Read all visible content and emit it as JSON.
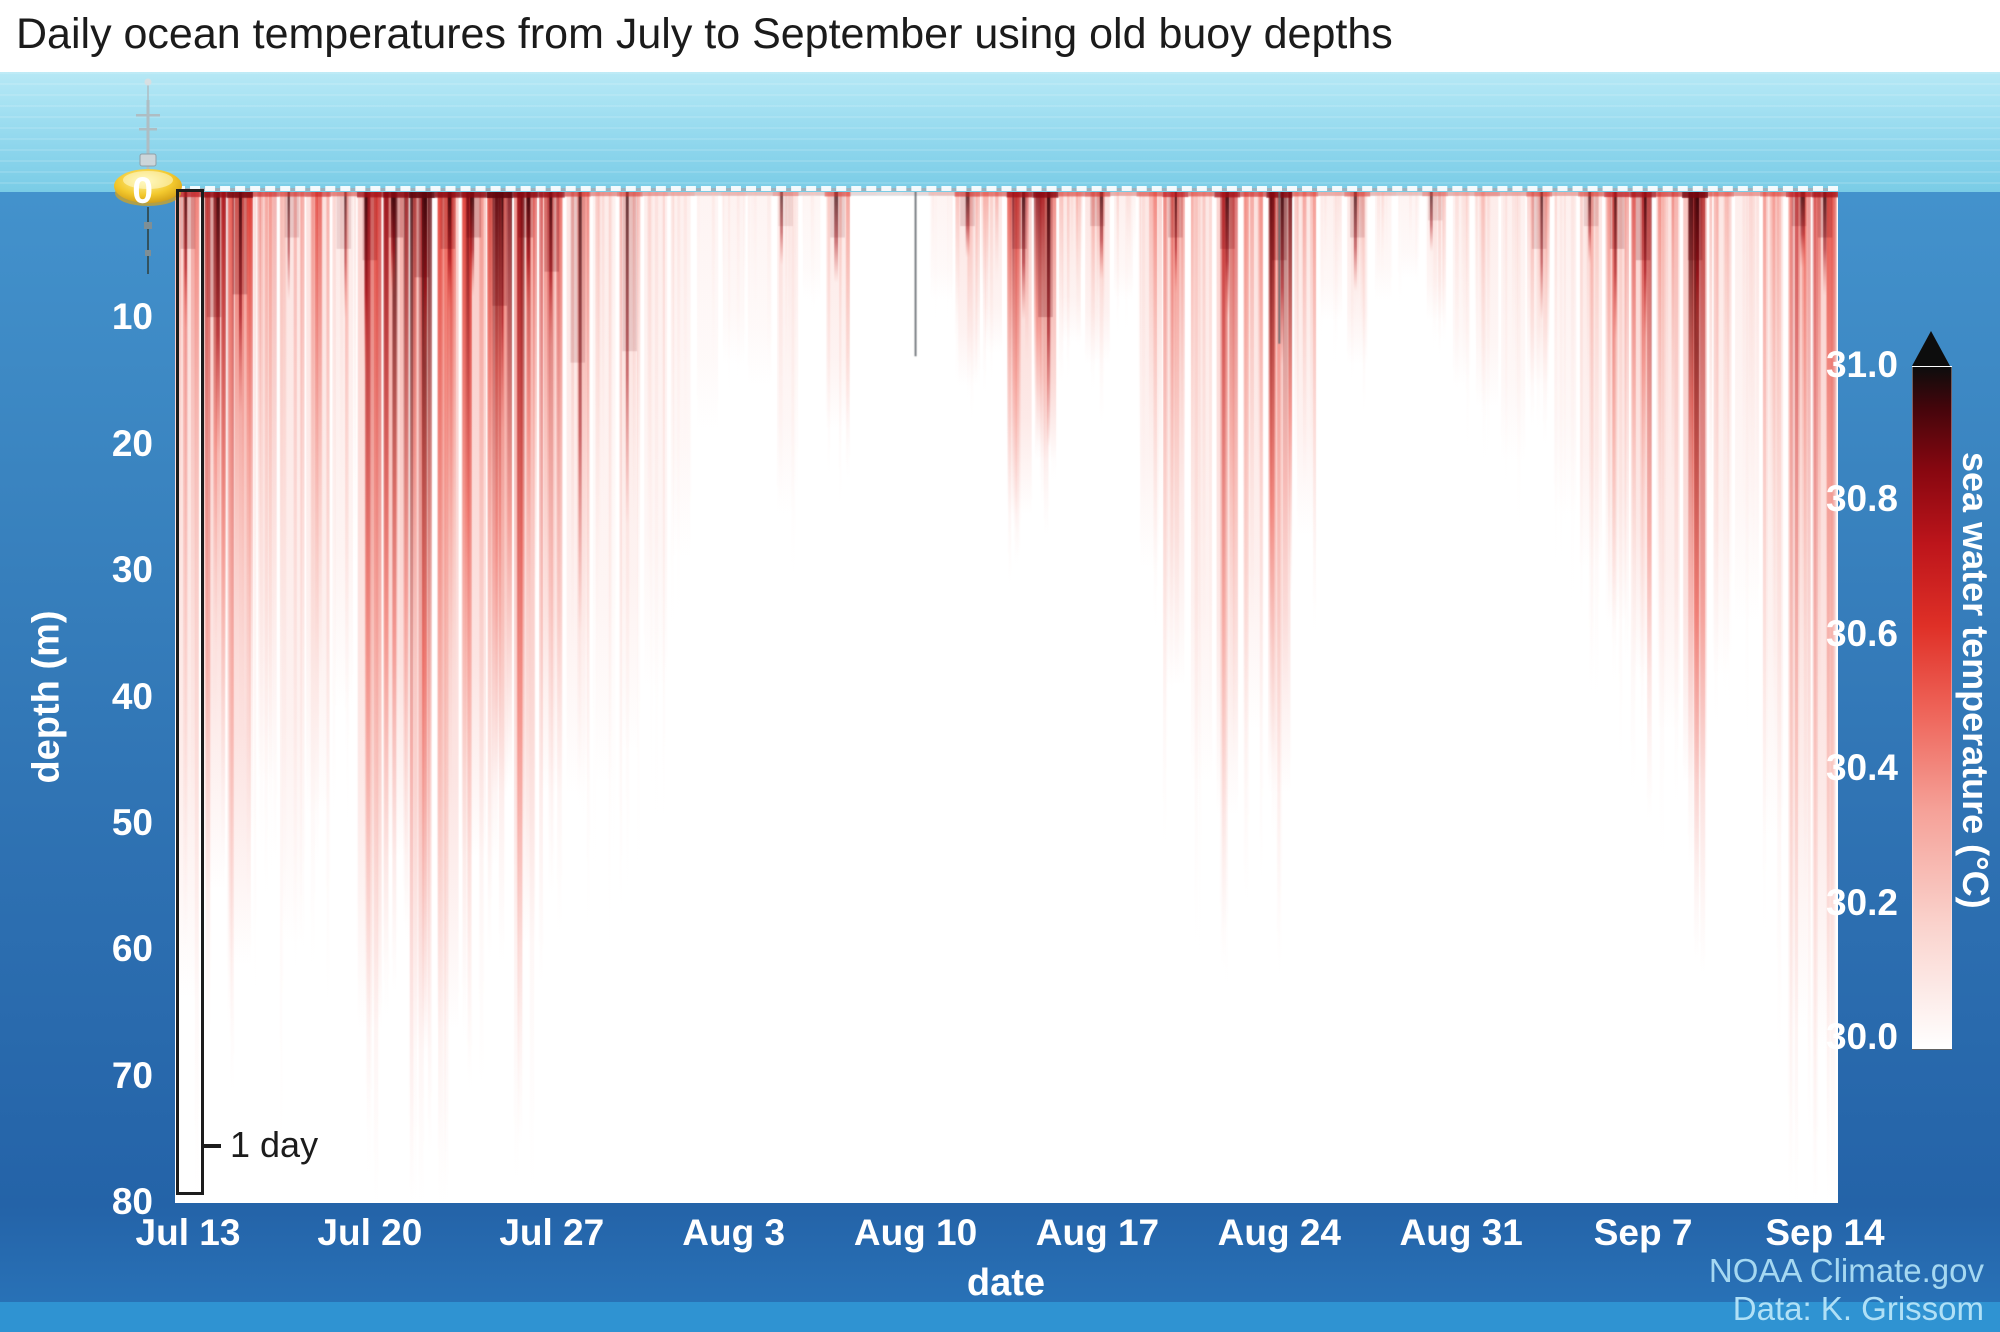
{
  "page": {
    "title": "Daily ocean temperatures from July to September using old buoy depths",
    "credits": [
      "NOAA Climate.gov",
      "Data: K. Grissom"
    ]
  },
  "chart_data": {
    "type": "heatmap",
    "title": "Daily ocean temperatures from July to September using old buoy depths",
    "xlabel": "date",
    "ylabel": "depth (m)",
    "x_start_label": "Jul 13",
    "x_end_label": "Sep 14",
    "x_tick_labels": [
      "Jul 13",
      "Jul 20",
      "Jul 27",
      "Aug 3",
      "Aug 10",
      "Aug 17",
      "Aug 24",
      "Aug 31",
      "Sep 7",
      "Sep 14"
    ],
    "x_tick_days": [
      0,
      7,
      14,
      21,
      28,
      35,
      42,
      49,
      56,
      63
    ],
    "y_ticks_m": [
      0,
      10,
      20,
      30,
      40,
      50,
      60,
      70,
      80
    ],
    "depth_range_m": [
      0,
      80
    ],
    "annotations": {
      "one_day": "1 day"
    },
    "colorbar": {
      "label": "sea water temperature (°C)",
      "range_c": [
        30.0,
        31.0
      ],
      "ticks_c": [
        30.0,
        30.2,
        30.4,
        30.6,
        30.8,
        31.0
      ],
      "over_range_arrow": true,
      "gradient_stops": [
        {
          "t": 0.0,
          "color": "#ffffff"
        },
        {
          "t": 0.18,
          "color": "#fad3cd"
        },
        {
          "t": 0.35,
          "color": "#f5a198"
        },
        {
          "t": 0.5,
          "color": "#ee6257"
        },
        {
          "t": 0.62,
          "color": "#df3027"
        },
        {
          "t": 0.74,
          "color": "#bd151b"
        },
        {
          "t": 0.85,
          "color": "#870710"
        },
        {
          "t": 0.94,
          "color": "#44050b"
        },
        {
          "t": 1.0,
          "color": "#0d0d0d"
        }
      ]
    },
    "days_format": [
      "max_warm_depth_m",
      "intensity_0to1",
      "dark_core_depth_m"
    ],
    "days": [
      [
        75,
        0.7,
        10
      ],
      [
        65,
        0.85,
        22
      ],
      [
        72,
        0.95,
        18
      ],
      [
        55,
        0.6,
        0
      ],
      [
        70,
        0.55,
        8
      ],
      [
        58,
        0.6,
        0
      ],
      [
        48,
        0.45,
        10
      ],
      [
        78,
        0.8,
        12
      ],
      [
        62,
        0.9,
        8
      ],
      [
        80,
        1.0,
        15
      ],
      [
        78,
        0.9,
        10
      ],
      [
        62,
        0.9,
        8
      ],
      [
        56,
        1.0,
        20
      ],
      [
        70,
        0.9,
        8
      ],
      [
        56,
        0.85,
        14
      ],
      [
        56,
        0.55,
        30
      ],
      [
        55,
        0.4,
        0
      ],
      [
        52,
        0.5,
        28
      ],
      [
        46,
        0.35,
        0
      ],
      [
        34,
        0.3,
        0
      ],
      [
        22,
        0.2,
        0
      ],
      [
        16,
        0.25,
        0
      ],
      [
        18,
        0.2,
        0
      ],
      [
        30,
        0.35,
        6
      ],
      [
        10,
        0.15,
        0
      ],
      [
        22,
        0.5,
        8
      ],
      [
        4,
        0.05,
        0
      ],
      [
        2,
        0.02,
        0
      ],
      [
        3,
        0.05,
        0
      ],
      [
        10,
        0.2,
        0
      ],
      [
        18,
        0.55,
        6
      ],
      [
        15,
        0.5,
        0
      ],
      [
        30,
        0.8,
        10
      ],
      [
        25,
        0.9,
        22
      ],
      [
        14,
        0.5,
        0
      ],
      [
        16,
        0.55,
        6
      ],
      [
        10,
        0.3,
        0
      ],
      [
        35,
        0.5,
        0
      ],
      [
        46,
        0.7,
        8
      ],
      [
        55,
        0.5,
        0
      ],
      [
        58,
        0.8,
        10
      ],
      [
        50,
        0.6,
        0
      ],
      [
        56,
        0.9,
        12
      ],
      [
        32,
        0.5,
        0
      ],
      [
        12,
        0.3,
        0
      ],
      [
        16,
        0.5,
        8
      ],
      [
        10,
        0.25,
        0
      ],
      [
        8,
        0.2,
        0
      ],
      [
        12,
        0.4,
        5
      ],
      [
        18,
        0.3,
        0
      ],
      [
        20,
        0.4,
        0
      ],
      [
        25,
        0.3,
        0
      ],
      [
        18,
        0.5,
        10
      ],
      [
        30,
        0.3,
        0
      ],
      [
        35,
        0.5,
        6
      ],
      [
        40,
        0.7,
        10
      ],
      [
        45,
        0.8,
        12
      ],
      [
        50,
        0.6,
        0
      ],
      [
        55,
        0.95,
        12
      ],
      [
        45,
        0.5,
        0
      ],
      [
        40,
        0.35,
        0
      ],
      [
        60,
        0.5,
        0
      ],
      [
        78,
        0.7,
        6
      ],
      [
        80,
        0.8,
        8
      ]
    ],
    "gap_markers": [
      {
        "day": 28,
        "depth_m": 13
      },
      {
        "day": 42,
        "depth_m": 12
      }
    ]
  },
  "colors": {
    "header_bg": "#ffffff",
    "title_text": "#1b1b1b",
    "axis_text": "#ffffff",
    "surface_band_top": "#a9e3f3",
    "surface_band_bottom": "#7acce6",
    "ocean_top": "#4493cd",
    "ocean_bottom": "#2463a8",
    "bottom_band": "#2f93d2",
    "buoy_yellow": "#f3c92e",
    "annotation_text": "#1c1c1c",
    "credit_text": "#a5d8f1"
  }
}
